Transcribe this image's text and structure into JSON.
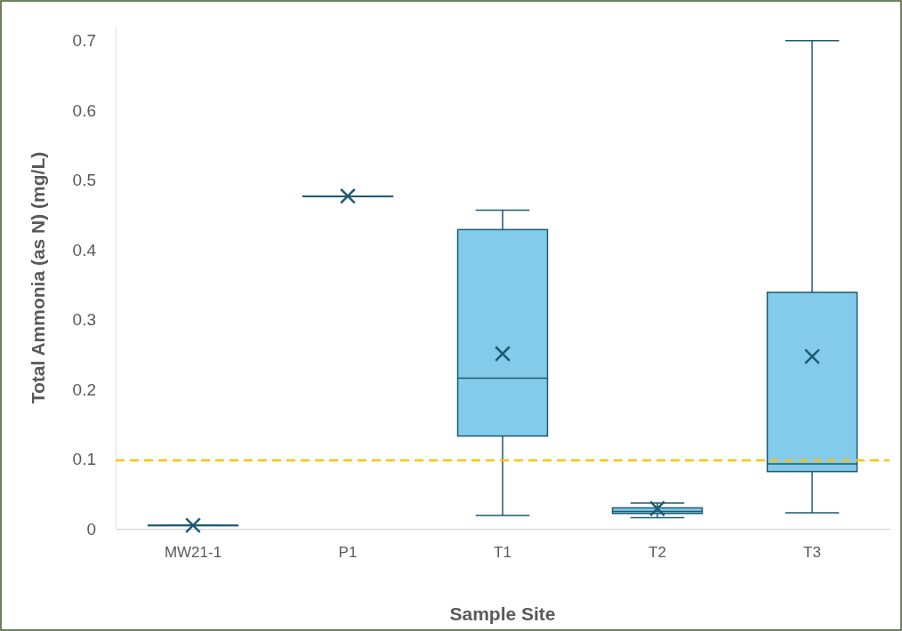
{
  "chart_data": {
    "type": "box",
    "xlabel": "Sample Site",
    "ylabel": "Total Ammonia (as N) (mg/L)",
    "categories": [
      "MW21-1",
      "P1",
      "T1",
      "T2",
      "T3"
    ],
    "color": "#83cbeb",
    "boxes": [
      {
        "low": 0.005,
        "q1": 0.005,
        "median": 0.005,
        "q3": 0.005,
        "high": 0.005,
        "mean": 0.005
      },
      {
        "low": 0.477,
        "q1": 0.477,
        "median": 0.477,
        "q3": 0.477,
        "high": 0.477,
        "mean": 0.477
      },
      {
        "low": 0.019,
        "q1": 0.133,
        "median": 0.216,
        "q3": 0.429,
        "high": 0.457,
        "mean": 0.251
      },
      {
        "low": 0.016,
        "q1": 0.022,
        "median": 0.025,
        "q3": 0.03,
        "high": 0.037,
        "mean": 0.029
      },
      {
        "low": 0.023,
        "q1": 0.082,
        "median": 0.093,
        "q3": 0.339,
        "high": 0.7,
        "mean": 0.247
      }
    ],
    "marker": "cross",
    "ylim": [
      0,
      0.72
    ],
    "yticks": [
      0,
      0.1,
      0.2,
      0.3,
      0.4,
      0.5,
      0.6,
      0.7
    ],
    "ref_lines": [
      {
        "axis": "y",
        "value": 0.098,
        "color": "#ffc000",
        "line_style": "dashed"
      }
    ]
  }
}
